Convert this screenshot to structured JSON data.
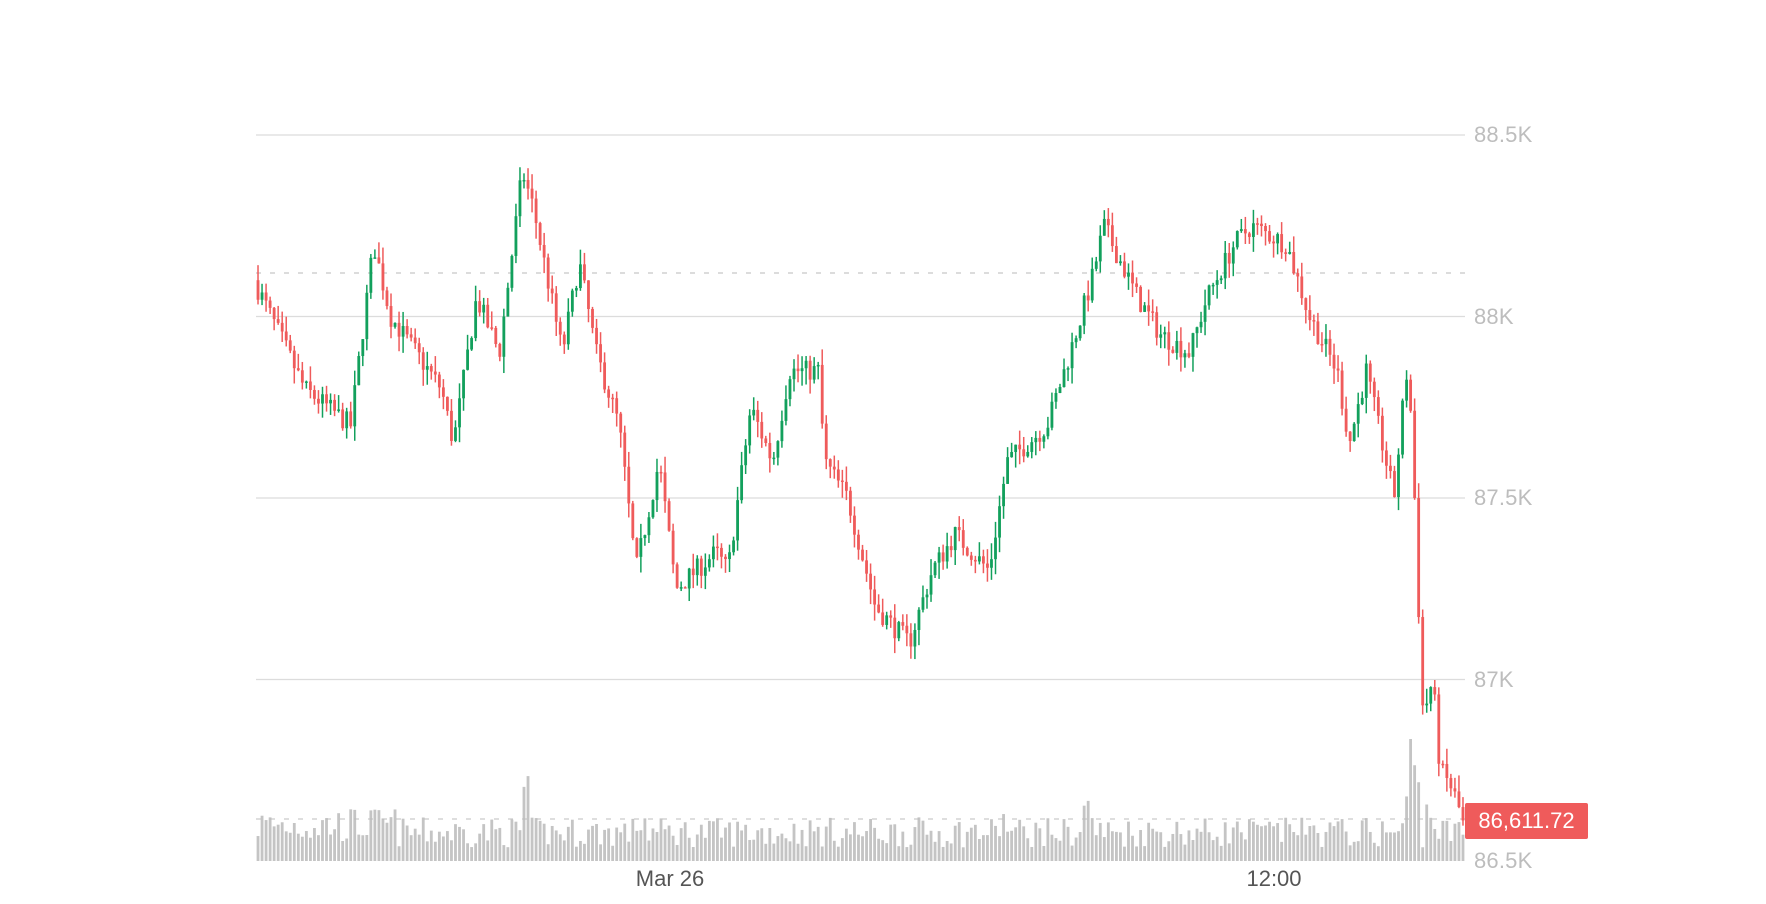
{
  "chart_data": {
    "type": "candlestick",
    "title": "",
    "xlabel": "",
    "ylabel": "",
    "ylim": [
      86500,
      88530
    ],
    "y_ticks": [
      "88.5K",
      "88K",
      "87.5K",
      "87K",
      "86.5K"
    ],
    "y_tick_values": [
      88500,
      88000,
      87500,
      87000,
      86500
    ],
    "x_ticks": [
      "Mar 26",
      "12:00"
    ],
    "grid": "horizontal",
    "legend": "none",
    "last_price": "86,611.72",
    "last_price_value": 86611.72,
    "reference_line_value": 88120,
    "colors": {
      "up": "#12a05c",
      "down": "#ef5b5b",
      "volume": "#c4c4c4",
      "grid": "#dcdcdc",
      "axis_text": "#bdbdbd",
      "time_text": "#555555",
      "price_tag_bg": "#ef5b5b"
    },
    "price_path_anchors": [
      [
        0,
        88100
      ],
      [
        0.014,
        88000
      ],
      [
        0.042,
        87800
      ],
      [
        0.08,
        87700
      ],
      [
        0.099,
        88200
      ],
      [
        0.113,
        88000
      ],
      [
        0.155,
        87800
      ],
      [
        0.165,
        87650
      ],
      [
        0.184,
        88050
      ],
      [
        0.203,
        87900
      ],
      [
        0.222,
        88400
      ],
      [
        0.231,
        88300
      ],
      [
        0.255,
        87900
      ],
      [
        0.269,
        88150
      ],
      [
        0.283,
        87900
      ],
      [
        0.302,
        87700
      ],
      [
        0.316,
        87300
      ],
      [
        0.335,
        87600
      ],
      [
        0.349,
        87250
      ],
      [
        0.382,
        87350
      ],
      [
        0.392,
        87300
      ],
      [
        0.411,
        87750
      ],
      [
        0.429,
        87600
      ],
      [
        0.443,
        87850
      ],
      [
        0.467,
        87850
      ],
      [
        0.472,
        87600
      ],
      [
        0.491,
        87500
      ],
      [
        0.514,
        87200
      ],
      [
        0.542,
        87100
      ],
      [
        0.561,
        87300
      ],
      [
        0.58,
        87400
      ],
      [
        0.608,
        87300
      ],
      [
        0.623,
        87600
      ],
      [
        0.656,
        87700
      ],
      [
        0.675,
        87900
      ],
      [
        0.693,
        88100
      ],
      [
        0.703,
        88250
      ],
      [
        0.731,
        88050
      ],
      [
        0.75,
        87950
      ],
      [
        0.774,
        87900
      ],
      [
        0.788,
        88050
      ],
      [
        0.811,
        88200
      ],
      [
        0.825,
        88250
      ],
      [
        0.854,
        88200
      ],
      [
        0.873,
        88000
      ],
      [
        0.896,
        87850
      ],
      [
        0.906,
        87650
      ],
      [
        0.92,
        87850
      ],
      [
        0.943,
        87500
      ],
      [
        0.953,
        87850
      ],
      [
        0.958,
        87700
      ],
      [
        0.962,
        87300
      ],
      [
        0.967,
        86900
      ],
      [
        0.975,
        87000
      ],
      [
        0.981,
        86750
      ],
      [
        0.991,
        86700
      ],
      [
        1.0,
        86611.72
      ]
    ],
    "candle_count": 300,
    "volume_reference": 0.6,
    "volume_spikes": [
      [
        0.225,
        2.6
      ],
      [
        0.32,
        1.4
      ],
      [
        0.69,
        1.7
      ],
      [
        0.62,
        1.3
      ],
      [
        0.86,
        1.4
      ],
      [
        0.96,
        2.5
      ],
      [
        0.955,
        1.9
      ],
      [
        0.973,
        1.6
      ]
    ]
  }
}
